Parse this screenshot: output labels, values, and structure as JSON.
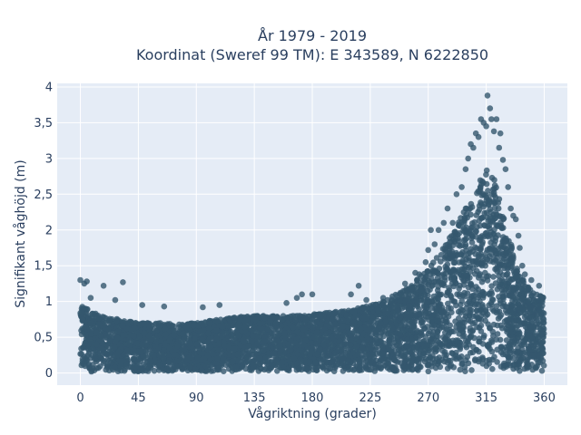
{
  "chart_data": {
    "type": "scatter",
    "title_lines": [
      "År 1979 - 2019",
      "Koordinat (Sweref 99 TM): E 343589, N 6222850"
    ],
    "xlabel": "Vågriktning (grader)",
    "ylabel": "Signifikant våghöjd (m)",
    "xlim": [
      -18,
      378
    ],
    "ylim": [
      -0.17,
      4.05
    ],
    "x_ticks": [
      0,
      45,
      90,
      135,
      180,
      225,
      270,
      315,
      360
    ],
    "x_tick_labels": [
      "0",
      "45",
      "90",
      "135",
      "180",
      "225",
      "270",
      "315",
      "360"
    ],
    "y_ticks": [
      0,
      0.5,
      1,
      1.5,
      2,
      2.5,
      3,
      3.5,
      4
    ],
    "y_tick_labels": [
      "0",
      "0,5",
      "1",
      "1,5",
      "2",
      "2,5",
      "3",
      "3,5",
      "4"
    ],
    "grid": true,
    "marker_color": "#34586e",
    "envelope": {
      "direction": [
        0,
        15,
        30,
        45,
        60,
        75,
        90,
        105,
        120,
        135,
        150,
        165,
        180,
        195,
        210,
        225,
        240,
        255,
        270,
        280,
        290,
        300,
        310,
        315,
        320,
        330,
        340,
        350,
        360
      ],
      "upper": [
        0.95,
        0.8,
        0.75,
        0.7,
        0.7,
        0.68,
        0.7,
        0.75,
        0.78,
        0.8,
        0.8,
        0.8,
        0.82,
        0.85,
        0.88,
        0.95,
        1.05,
        1.2,
        1.45,
        1.7,
        2.0,
        2.35,
        2.7,
        2.85,
        2.8,
        2.1,
        1.4,
        1.15,
        1.05
      ],
      "lower": [
        0.0,
        0.02,
        0.02,
        0.02,
        0.02,
        0.02,
        0.02,
        0.02,
        0.02,
        0.02,
        0.02,
        0.02,
        0.02,
        0.02,
        0.02,
        0.02,
        0.02,
        0.02,
        0.02,
        0.02,
        0.02,
        0.02,
        0.02,
        0.02,
        0.02,
        0.02,
        0.02,
        0.02,
        0.0
      ]
    },
    "outliers": [
      {
        "x": 0,
        "y": 1.3
      },
      {
        "x": 3,
        "y": 1.25
      },
      {
        "x": 5,
        "y": 1.28
      },
      {
        "x": 8,
        "y": 1.05
      },
      {
        "x": 18,
        "y": 1.22
      },
      {
        "x": 33,
        "y": 1.27
      },
      {
        "x": 27,
        "y": 1.02
      },
      {
        "x": 48,
        "y": 0.95
      },
      {
        "x": 65,
        "y": 0.93
      },
      {
        "x": 95,
        "y": 0.92
      },
      {
        "x": 108,
        "y": 0.95
      },
      {
        "x": 160,
        "y": 0.98
      },
      {
        "x": 168,
        "y": 1.05
      },
      {
        "x": 172,
        "y": 1.1
      },
      {
        "x": 180,
        "y": 1.1
      },
      {
        "x": 210,
        "y": 1.1
      },
      {
        "x": 216,
        "y": 1.22
      },
      {
        "x": 222,
        "y": 1.02
      },
      {
        "x": 235,
        "y": 1.05
      },
      {
        "x": 252,
        "y": 1.25
      },
      {
        "x": 260,
        "y": 1.4
      },
      {
        "x": 263,
        "y": 1.38
      },
      {
        "x": 268,
        "y": 1.55
      },
      {
        "x": 270,
        "y": 1.72
      },
      {
        "x": 272,
        "y": 2.0
      },
      {
        "x": 275,
        "y": 1.8
      },
      {
        "x": 278,
        "y": 2.0
      },
      {
        "x": 282,
        "y": 2.1
      },
      {
        "x": 285,
        "y": 2.3
      },
      {
        "x": 289,
        "y": 2.1
      },
      {
        "x": 292,
        "y": 2.5
      },
      {
        "x": 296,
        "y": 2.6
      },
      {
        "x": 299,
        "y": 2.85
      },
      {
        "x": 301,
        "y": 3.0
      },
      {
        "x": 303,
        "y": 3.2
      },
      {
        "x": 305,
        "y": 3.15
      },
      {
        "x": 307,
        "y": 3.35
      },
      {
        "x": 309,
        "y": 3.3
      },
      {
        "x": 311,
        "y": 3.55
      },
      {
        "x": 313,
        "y": 3.5
      },
      {
        "x": 315,
        "y": 3.45
      },
      {
        "x": 316,
        "y": 3.88
      },
      {
        "x": 318,
        "y": 3.7
      },
      {
        "x": 319,
        "y": 3.55
      },
      {
        "x": 321,
        "y": 3.38
      },
      {
        "x": 323,
        "y": 3.55
      },
      {
        "x": 325,
        "y": 3.15
      },
      {
        "x": 326,
        "y": 3.35
      },
      {
        "x": 328,
        "y": 2.98
      },
      {
        "x": 330,
        "y": 2.85
      },
      {
        "x": 332,
        "y": 2.6
      },
      {
        "x": 334,
        "y": 2.3
      },
      {
        "x": 336,
        "y": 2.2
      },
      {
        "x": 338,
        "y": 2.15
      },
      {
        "x": 340,
        "y": 1.92
      },
      {
        "x": 341,
        "y": 1.75
      },
      {
        "x": 343,
        "y": 1.5
      },
      {
        "x": 345,
        "y": 1.38
      },
      {
        "x": 350,
        "y": 1.3
      },
      {
        "x": 356,
        "y": 1.22
      }
    ]
  }
}
